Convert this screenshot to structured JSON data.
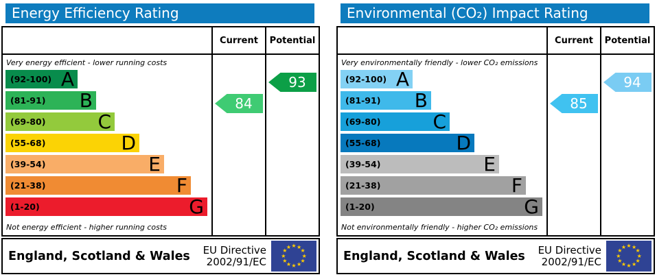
{
  "chart_data": [
    {
      "type": "bar",
      "title": "Energy Efficiency Rating",
      "categories": [
        "A",
        "B",
        "C",
        "D",
        "E",
        "F",
        "G"
      ],
      "band_ranges": [
        "92-100",
        "81-91",
        "69-80",
        "55-68",
        "39-54",
        "21-38",
        "1-20"
      ],
      "values": [
        35,
        44,
        53,
        65,
        77,
        90,
        98
      ],
      "current": 84,
      "potential": 93,
      "current_band": "B",
      "potential_band": "A",
      "top_label": "Very energy efficient - lower running costs",
      "bottom_label": "Not energy efficient - higher running costs",
      "footer": "England, Scotland & Wales — EU Directive 2002/91/EC"
    },
    {
      "type": "bar",
      "title": "Environmental (CO₂) Impact Rating",
      "categories": [
        "A",
        "B",
        "C",
        "D",
        "E",
        "F",
        "G"
      ],
      "band_ranges": [
        "92-100",
        "81-91",
        "69-80",
        "55-68",
        "39-54",
        "21-38",
        "1-20"
      ],
      "values": [
        35,
        44,
        53,
        65,
        77,
        90,
        98
      ],
      "current": 85,
      "potential": 94,
      "current_band": "B",
      "potential_band": "A",
      "top_label": "Very environmentally friendly - lower CO₂ emissions",
      "bottom_label": "Not environmentally friendly - higher CO₂ emissions",
      "footer": "England, Scotland & Wales — EU Directive 2002/91/EC"
    }
  ],
  "panels": [
    {
      "title": "Energy Efficiency Rating",
      "header_color": "#0e7cbe",
      "columns": {
        "current": "Current",
        "potential": "Potential"
      },
      "top_note": "Very energy efficient - lower running costs",
      "bottom_note": "Not energy efficient - higher running costs",
      "bands": [
        {
          "letter": "A",
          "range": "(92-100)",
          "color": "#088c4c",
          "width_pct": 35
        },
        {
          "letter": "B",
          "range": "(81-91)",
          "color": "#2db357",
          "width_pct": 44
        },
        {
          "letter": "C",
          "range": "(69-80)",
          "color": "#93ca3c",
          "width_pct": 53
        },
        {
          "letter": "D",
          "range": "(55-68)",
          "color": "#fbd305",
          "width_pct": 65
        },
        {
          "letter": "E",
          "range": "(39-54)",
          "color": "#f9ad67",
          "width_pct": 77
        },
        {
          "letter": "F",
          "range": "(21-38)",
          "color": "#f08b33",
          "width_pct": 90
        },
        {
          "letter": "G",
          "range": "(1-20)",
          "color": "#ec1c2c",
          "width_pct": 98
        }
      ],
      "current": {
        "value": "84",
        "band_index": 1,
        "color": "#3fcb73"
      },
      "potential": {
        "value": "93",
        "band_index": 0,
        "color": "#0c9f47"
      },
      "footer": {
        "region": "England, Scotland & Wales",
        "directive1": "EU Directive",
        "directive2": "2002/91/EC"
      }
    },
    {
      "title": "Environmental (CO₂) Impact Rating",
      "header_color": "#0e7cbe",
      "columns": {
        "current": "Current",
        "potential": "Potential"
      },
      "top_note": "Very environmentally friendly - lower CO₂ emissions",
      "bottom_note": "Not environmentally friendly - higher CO₂ emissions",
      "bands": [
        {
          "letter": "A",
          "range": "(92-100)",
          "color": "#83d1f4",
          "width_pct": 35
        },
        {
          "letter": "B",
          "range": "(81-91)",
          "color": "#3fb9ea",
          "width_pct": 44
        },
        {
          "letter": "C",
          "range": "(69-80)",
          "color": "#17a0da",
          "width_pct": 53
        },
        {
          "letter": "D",
          "range": "(55-68)",
          "color": "#0779bd",
          "width_pct": 65
        },
        {
          "letter": "E",
          "range": "(39-54)",
          "color": "#bcbcbc",
          "width_pct": 77
        },
        {
          "letter": "F",
          "range": "(21-38)",
          "color": "#a1a1a1",
          "width_pct": 90
        },
        {
          "letter": "G",
          "range": "(1-20)",
          "color": "#848484",
          "width_pct": 98
        }
      ],
      "current": {
        "value": "85",
        "band_index": 1,
        "color": "#40c2f0"
      },
      "potential": {
        "value": "94",
        "band_index": 0,
        "color": "#7accf3"
      },
      "footer": {
        "region": "England, Scotland & Wales",
        "directive1": "EU Directive",
        "directive2": "2002/91/EC"
      }
    }
  ]
}
